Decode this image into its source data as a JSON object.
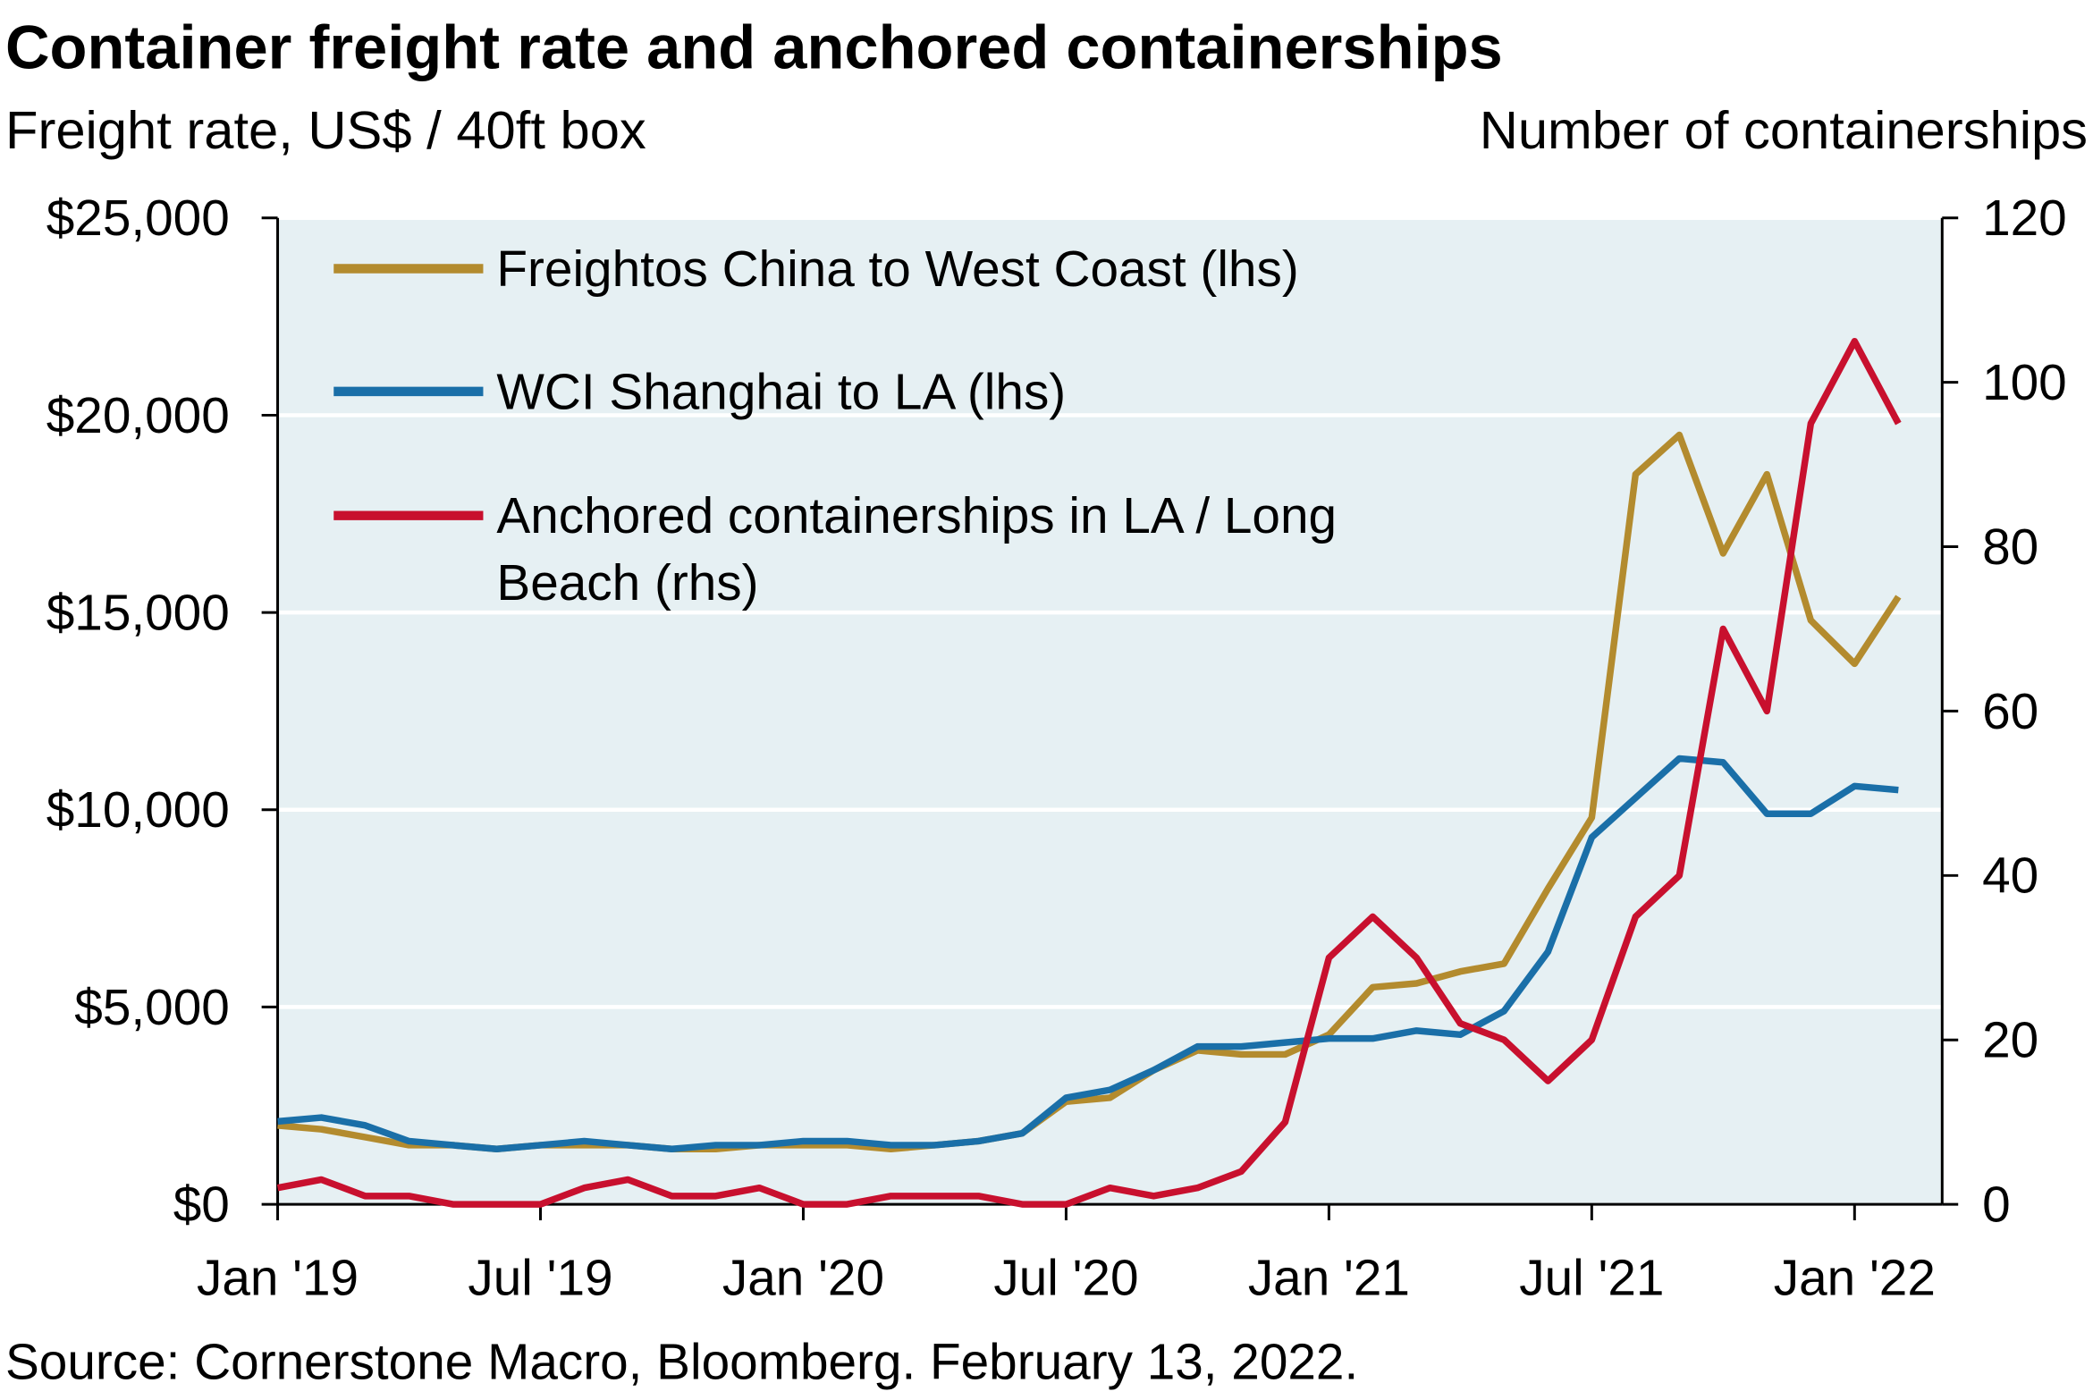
{
  "chart_data": {
    "type": "line",
    "title": "Container freight rate and anchored containerships",
    "y_label": "Freight rate, US$ / 40ft box",
    "y2_label": "Number of containerships",
    "source": "Source: Cornerstone Macro, Bloomberg. February 13, 2022.",
    "x": [
      "2019-01",
      "2019-02",
      "2019-03",
      "2019-04",
      "2019-05",
      "2019-06",
      "2019-07",
      "2019-08",
      "2019-09",
      "2019-10",
      "2019-11",
      "2019-12",
      "2020-01",
      "2020-02",
      "2020-03",
      "2020-04",
      "2020-05",
      "2020-06",
      "2020-07",
      "2020-08",
      "2020-09",
      "2020-10",
      "2020-11",
      "2020-12",
      "2021-01",
      "2021-02",
      "2021-03",
      "2021-04",
      "2021-05",
      "2021-06",
      "2021-07",
      "2021-08",
      "2021-09",
      "2021-10",
      "2021-11",
      "2021-12",
      "2022-01",
      "2022-02"
    ],
    "xlim": [
      "2019-01",
      "2022-03"
    ],
    "xticks": [
      {
        "value": "2019-01",
        "label": "Jan '19"
      },
      {
        "value": "2019-07",
        "label": "Jul '19"
      },
      {
        "value": "2020-01",
        "label": "Jan '20"
      },
      {
        "value": "2020-07",
        "label": "Jul '20"
      },
      {
        "value": "2021-01",
        "label": "Jan '21"
      },
      {
        "value": "2021-07",
        "label": "Jul '21"
      },
      {
        "value": "2022-01",
        "label": "Jan '22"
      }
    ],
    "ylim": [
      0,
      25000
    ],
    "yticks": [
      {
        "value": 0,
        "label": "$0"
      },
      {
        "value": 5000,
        "label": "$5,000"
      },
      {
        "value": 10000,
        "label": "$10,000"
      },
      {
        "value": 15000,
        "label": "$15,000"
      },
      {
        "value": 20000,
        "label": "$20,000"
      },
      {
        "value": 25000,
        "label": "$25,000"
      }
    ],
    "y2lim": [
      0,
      120
    ],
    "y2ticks": [
      0,
      20,
      40,
      60,
      80,
      100,
      120
    ],
    "grid": true,
    "legend": "upper left",
    "series": [
      {
        "name": "Freightos China to West Coast (lhs)",
        "color": "#b38b2e",
        "values": [
          2000,
          1900,
          1700,
          1500,
          1500,
          1400,
          1500,
          1500,
          1500,
          1400,
          1400,
          1500,
          1500,
          1500,
          1400,
          1500,
          1600,
          1800,
          2600,
          2700,
          3400,
          3900,
          3800,
          3800,
          4300,
          5500,
          5600,
          5900,
          6100,
          8000,
          9800,
          18500,
          19500,
          16500,
          18500,
          14800,
          13700,
          15400
        ]
      },
      {
        "name": "WCI Shanghai to LA (lhs)",
        "color": "#1a6fa8",
        "values": [
          2100,
          2200,
          2000,
          1600,
          1500,
          1400,
          1500,
          1600,
          1500,
          1400,
          1500,
          1500,
          1600,
          1600,
          1500,
          1500,
          1600,
          1800,
          2700,
          2900,
          3400,
          4000,
          4000,
          4100,
          4200,
          4200,
          4400,
          4300,
          4900,
          6400,
          9300,
          10300,
          11300,
          11200,
          9900,
          9900,
          10600,
          10500
        ]
      },
      {
        "name": "Anchored containerships in LA / Long Beach (rhs)",
        "color": "#c8102e",
        "axis": "y2",
        "values": [
          2,
          3,
          1,
          1,
          0,
          0,
          0,
          2,
          3,
          1,
          1,
          2,
          0,
          0,
          1,
          1,
          1,
          0,
          0,
          2,
          1,
          2,
          4,
          10,
          30,
          35,
          30,
          22,
          20,
          15,
          20,
          35,
          40,
          70,
          60,
          95,
          105,
          95
        ]
      }
    ]
  }
}
